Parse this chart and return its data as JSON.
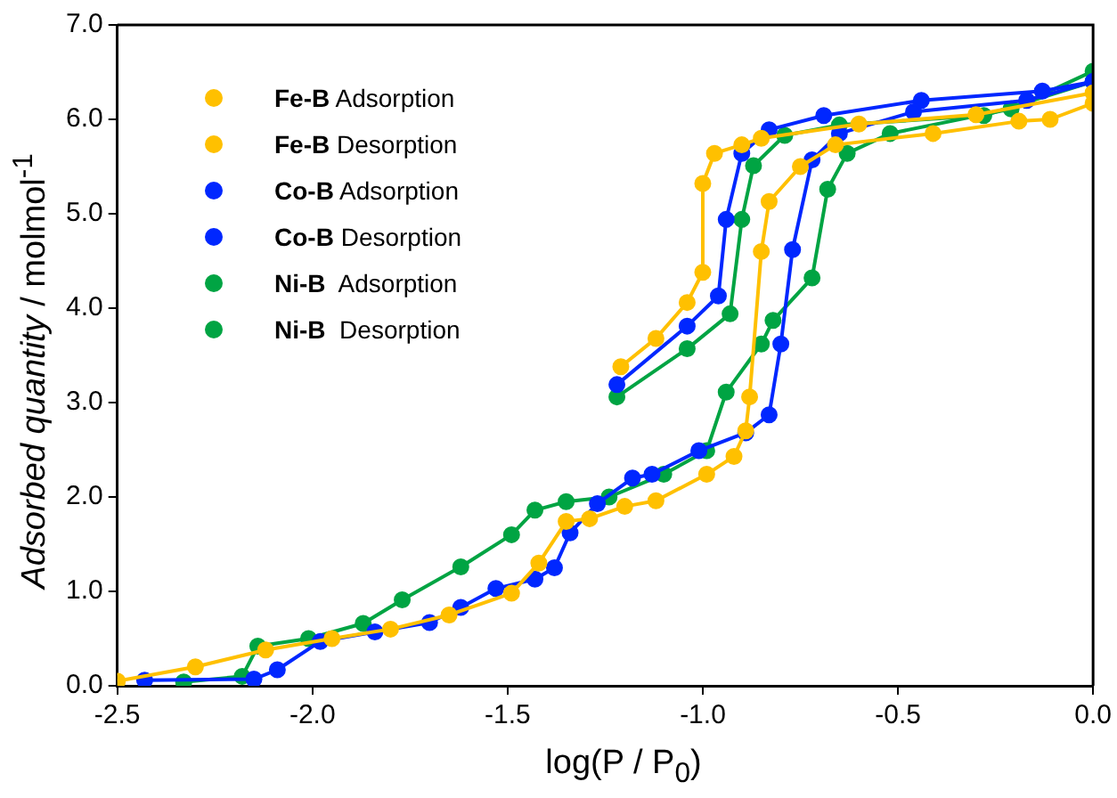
{
  "chart_data": {
    "type": "line",
    "xlabel": "log(P / P$_{0}$)",
    "ylabel": "Adsorbed quantity / molmol$^{-1}$",
    "xlim": [
      -2.5,
      0
    ],
    "xticks": [
      {
        "value": -2.5,
        "label": "-2.5"
      },
      {
        "value": -2,
        "label": "-2.0"
      },
      {
        "value": -1.5,
        "label": "-1.5"
      },
      {
        "value": -1,
        "label": "-1.0"
      },
      {
        "value": -0.5,
        "label": "-0.5"
      },
      {
        "value": 0,
        "label": "0.0"
      }
    ],
    "ylim": [
      0,
      7
    ],
    "yticks": [
      {
        "value": 0,
        "label": "0.0"
      },
      {
        "value": 1,
        "label": "1.0"
      },
      {
        "value": 2,
        "label": "2.0"
      },
      {
        "value": 3,
        "label": "3.0"
      },
      {
        "value": 4,
        "label": "4.0"
      },
      {
        "value": 5,
        "label": "5.0"
      },
      {
        "value": 6,
        "label": "6.0"
      },
      {
        "value": 7,
        "label": "7.0"
      }
    ],
    "grid": false,
    "legend": "top left",
    "marker": "circle",
    "line_style": "solid",
    "series": [
      {
        "name": "Fe-B Adsorption",
        "color": "#ffc000",
        "x": [
          -2.5,
          -2.3,
          -2.12,
          -1.95,
          -1.8,
          -1.65,
          -1.49,
          -1.42,
          -1.35,
          -1.29,
          -1.2,
          -1.12,
          -0.99,
          -0.92,
          -0.89,
          -0.88,
          -0.85,
          -0.83,
          -0.75,
          -0.66,
          -0.41,
          -0.19,
          -0.11,
          0
        ],
        "values": [
          0.05,
          0.2,
          0.38,
          0.5,
          0.6,
          0.75,
          0.98,
          1.3,
          1.74,
          1.77,
          1.9,
          1.96,
          2.24,
          2.43,
          2.7,
          3.06,
          4.6,
          5.13,
          5.5,
          5.73,
          5.85,
          5.98,
          6.0,
          6.17
        ]
      },
      {
        "name": "Fe-B Desorption",
        "color": "#ffc000",
        "x": [
          0,
          -0.3,
          -0.6,
          -0.85,
          -0.9,
          -0.97,
          -1.0,
          -1.0,
          -1.04,
          -1.12,
          -1.21
        ],
        "values": [
          6.28,
          6.05,
          5.95,
          5.8,
          5.73,
          5.64,
          5.32,
          4.38,
          4.06,
          3.68,
          3.38
        ]
      },
      {
        "name": "Co-B Adsorption",
        "color": "#0027ff",
        "x": [
          -2.43,
          -2.15,
          -2.09,
          -1.98,
          -1.84,
          -1.7,
          -1.62,
          -1.53,
          -1.43,
          -1.38,
          -1.34,
          -1.27,
          -1.18,
          -1.13,
          -1.01,
          -0.89,
          -0.83,
          -0.8,
          -0.77,
          -0.72,
          -0.65,
          -0.46,
          -0.17,
          0
        ],
        "values": [
          0.06,
          0.07,
          0.17,
          0.47,
          0.57,
          0.67,
          0.83,
          1.03,
          1.13,
          1.25,
          1.62,
          1.93,
          2.2,
          2.24,
          2.49,
          2.68,
          2.87,
          3.62,
          4.62,
          5.57,
          5.85,
          6.08,
          6.2,
          6.4
        ]
      },
      {
        "name": "Co-B Desorption",
        "color": "#0027ff",
        "x": [
          0,
          -0.13,
          -0.44,
          -0.69,
          -0.83,
          -0.9,
          -0.94,
          -0.96,
          -1.04,
          -1.22
        ],
        "values": [
          6.4,
          6.3,
          6.2,
          6.04,
          5.89,
          5.64,
          4.94,
          4.13,
          3.81,
          3.19
        ]
      },
      {
        "name": "Ni-B  Adsorption",
        "color": "#00a443",
        "x": [
          -2.33,
          -2.18,
          -2.14,
          -2.01,
          -1.87,
          -1.77,
          -1.62,
          -1.49,
          -1.43,
          -1.35,
          -1.24,
          -1.1,
          -0.99,
          -0.94,
          -0.85,
          -0.82,
          -0.72,
          -0.68,
          -0.63,
          -0.52,
          -0.21,
          0
        ],
        "values": [
          0.04,
          0.1,
          0.42,
          0.5,
          0.66,
          0.91,
          1.26,
          1.6,
          1.86,
          1.95,
          2.0,
          2.24,
          2.49,
          3.11,
          3.62,
          3.87,
          4.32,
          5.26,
          5.64,
          5.85,
          6.11,
          6.51
        ]
      },
      {
        "name": "Ni-B  Desorption",
        "color": "#00a443",
        "x": [
          0,
          -0.28,
          -0.65,
          -0.79,
          -0.87,
          -0.9,
          -0.93,
          -1.04,
          -1.22
        ],
        "values": [
          6.4,
          6.04,
          5.94,
          5.83,
          5.51,
          4.94,
          3.94,
          3.57,
          3.06
        ]
      }
    ]
  }
}
